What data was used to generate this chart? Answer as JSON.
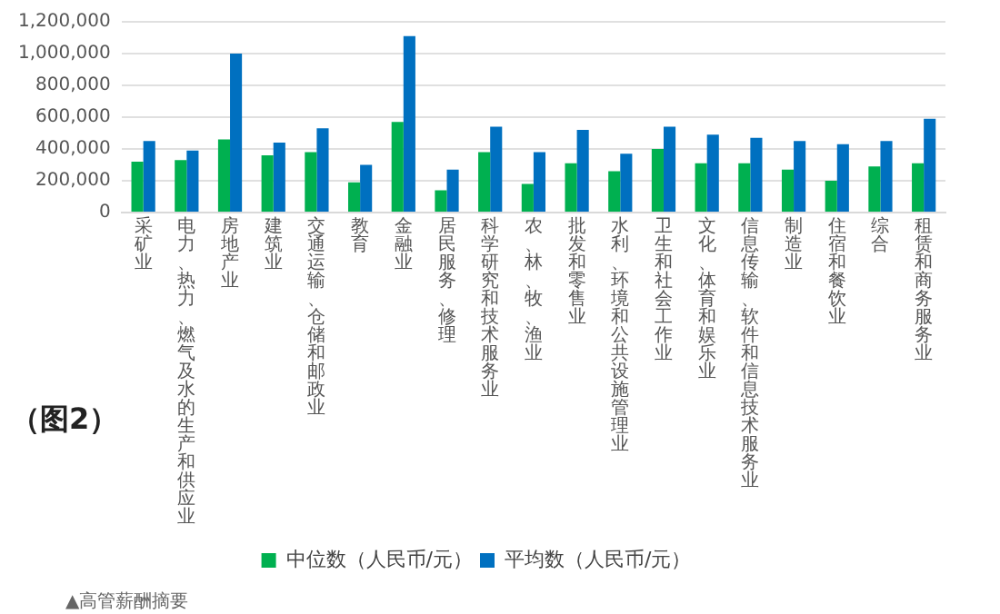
{
  "chart_data": {
    "type": "bar",
    "categories": [
      "采矿业",
      "电力、热力、燃气及水的生产和供应业",
      "房地产业",
      "建筑业",
      "交通运输、仓储和邮政业",
      "教育",
      "金融业",
      "居民服务、修理",
      "科学研究和技术服务业",
      "农、林、牧、渔业",
      "批发和零售业",
      "水利、环境和公共设施管理业",
      "卫生和社会工作业",
      "文化、体育和娱乐业",
      "信息传输、软件和信息技术服务业",
      "制造业",
      "住宿和餐饮业",
      "综合",
      "租赁和商务服务业"
    ],
    "series": [
      {
        "name": "中位数（人民币/元）",
        "color": "#00b050",
        "values": [
          320000,
          330000,
          460000,
          360000,
          380000,
          190000,
          570000,
          140000,
          380000,
          180000,
          310000,
          260000,
          400000,
          310000,
          310000,
          270000,
          200000,
          290000,
          310000
        ]
      },
      {
        "name": "平均数（人民币/元）",
        "color": "#0070c0",
        "values": [
          450000,
          390000,
          1000000,
          440000,
          530000,
          300000,
          1110000,
          270000,
          540000,
          380000,
          520000,
          370000,
          540000,
          490000,
          470000,
          450000,
          430000,
          450000,
          590000
        ]
      }
    ],
    "ylim": [
      0,
      1200000
    ],
    "yticks": [
      {
        "value": 0,
        "label": "0"
      },
      {
        "value": 200000,
        "label": "200,000"
      },
      {
        "value": 400000,
        "label": "400,000"
      },
      {
        "value": 600000,
        "label": "600,000"
      },
      {
        "value": 800000,
        "label": "800,000"
      },
      {
        "value": 1000000,
        "label": "1,000,000"
      },
      {
        "value": 1200000,
        "label": "1,200,000"
      }
    ],
    "grid": "y",
    "legend": "bottom",
    "annotations": [
      "（图2）",
      "▲高管薪酬摘要"
    ]
  }
}
